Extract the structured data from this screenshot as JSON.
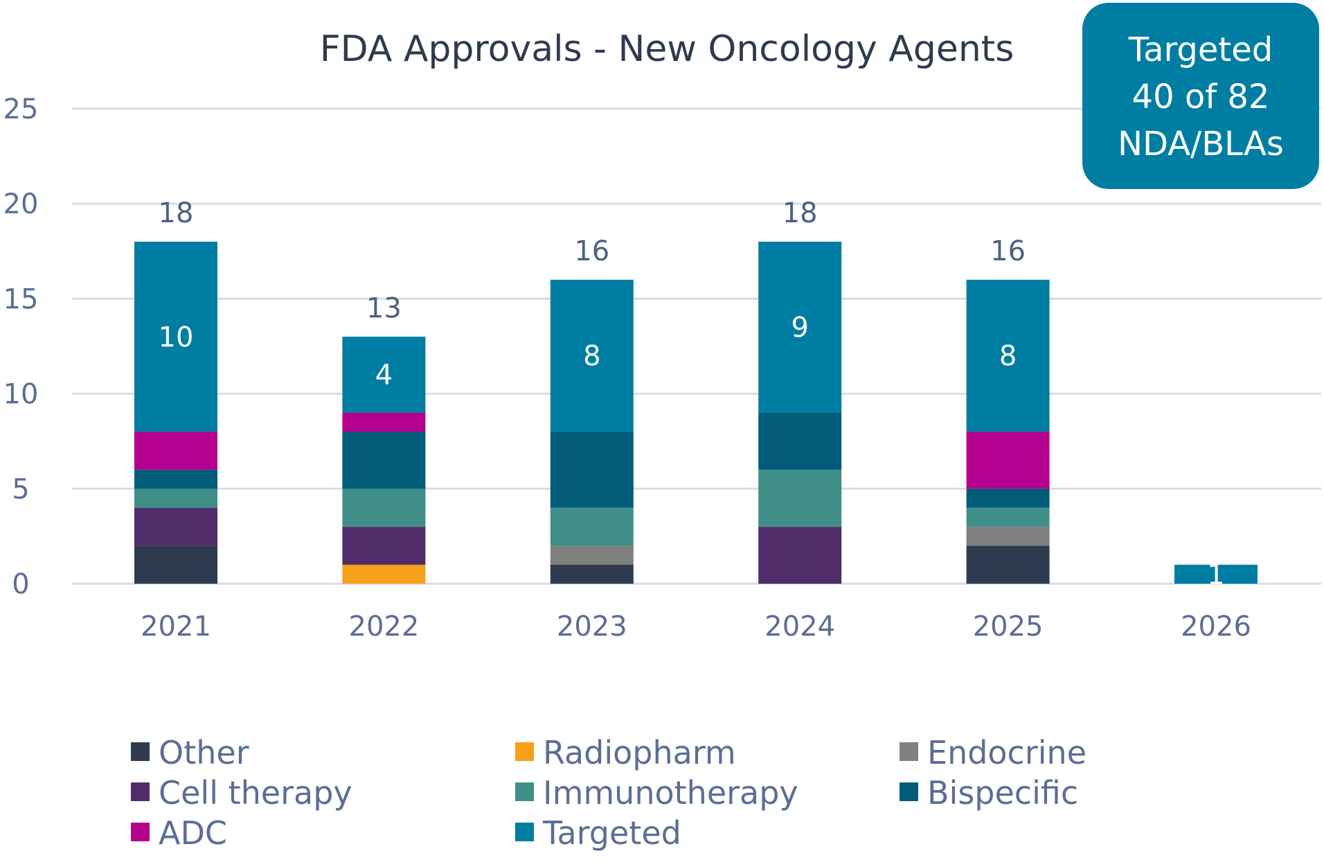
{
  "chart_data": {
    "type": "bar",
    "stacked": true,
    "title": "FDA Approvals - New Oncology Agents",
    "xlabel": "",
    "ylabel": "",
    "ylim": [
      0,
      25
    ],
    "yticks": [
      "0",
      "5",
      "10",
      "15",
      "20",
      "25"
    ],
    "grid": true,
    "legend_position": "bottom",
    "categories": [
      "2021",
      "2022",
      "2023",
      "2024",
      "2025",
      "2026"
    ],
    "series": [
      {
        "name": "Other",
        "color": "#2E3A4E",
        "values": [
          2,
          0,
          1,
          0,
          2,
          0
        ]
      },
      {
        "name": "Radiopharm",
        "color": "#F7A11A",
        "values": [
          0,
          1,
          0,
          0,
          0,
          0
        ]
      },
      {
        "name": "Endocrine",
        "color": "#808080",
        "values": [
          0,
          0,
          1,
          0,
          1,
          0
        ]
      },
      {
        "name": "Cell therapy",
        "color": "#512D6A",
        "values": [
          2,
          2,
          0,
          3,
          0,
          0
        ]
      },
      {
        "name": "Immunotherapy",
        "color": "#3F8F88",
        "values": [
          1,
          2,
          2,
          3,
          1,
          0
        ]
      },
      {
        "name": "Bispecific",
        "color": "#005C78",
        "values": [
          1,
          3,
          4,
          3,
          1,
          0
        ]
      },
      {
        "name": "ADC",
        "color": "#B5008F",
        "values": [
          2,
          1,
          0,
          0,
          3,
          0
        ]
      },
      {
        "name": "Targeted",
        "color": "#007DA3",
        "values": [
          10,
          4,
          8,
          9,
          8,
          1
        ]
      }
    ],
    "totals": [
      "18",
      "13",
      "16",
      "18",
      "16",
      ""
    ],
    "targeted_labels": [
      "10",
      "4",
      "8",
      "9",
      "8",
      "1"
    ],
    "callout": {
      "lines": [
        "Targeted",
        "40 of 82",
        "NDA/BLAs"
      ],
      "color": "#007DA3"
    }
  }
}
